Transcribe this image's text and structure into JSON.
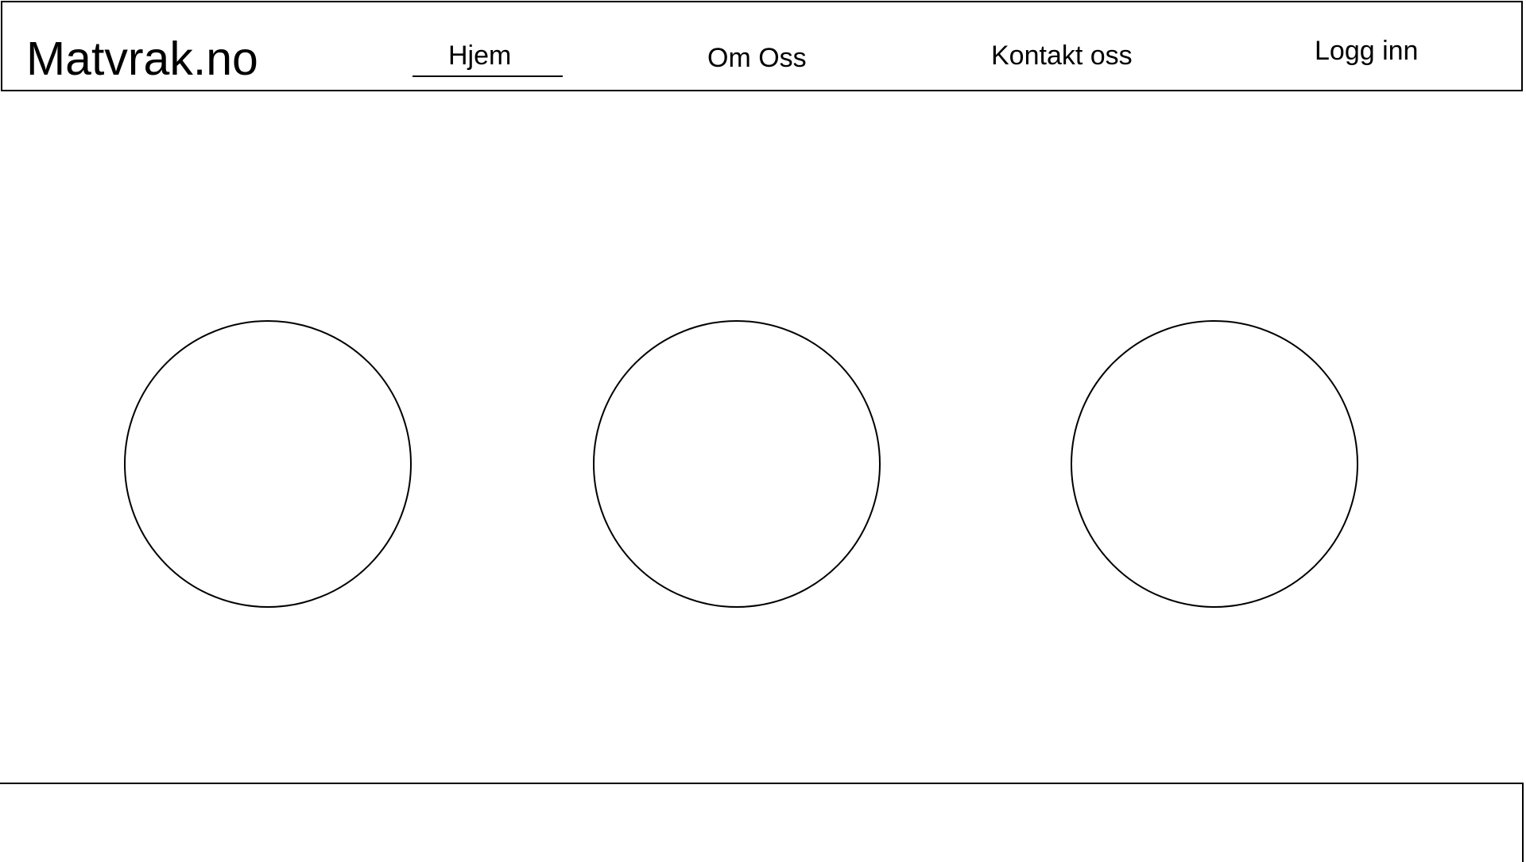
{
  "header": {
    "logo": "Matvrak.no",
    "nav": [
      {
        "label": "Hjem",
        "active": true
      },
      {
        "label": "Om Oss",
        "active": false
      },
      {
        "label": "Kontakt oss",
        "active": false
      },
      {
        "label": "Logg inn",
        "active": false
      }
    ]
  },
  "main": {
    "placeholders": [
      {
        "shape": "circle"
      },
      {
        "shape": "circle"
      },
      {
        "shape": "circle"
      }
    ]
  },
  "colors": {
    "stroke": "#000000",
    "background": "#ffffff"
  }
}
